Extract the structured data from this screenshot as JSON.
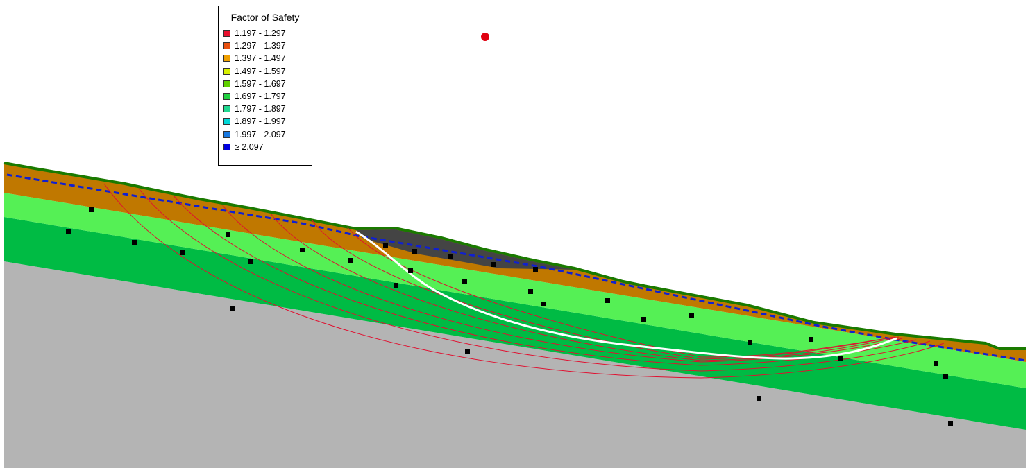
{
  "legend": {
    "title": "Factor of Safety",
    "items": [
      {
        "label": "1.197 - 1.297",
        "color": "#e8102e"
      },
      {
        "label": "1.297 - 1.397",
        "color": "#e85010"
      },
      {
        "label": "1.397 - 1.497",
        "color": "#f0a000"
      },
      {
        "label": "1.497 - 1.597",
        "color": "#d8f000"
      },
      {
        "label": "1.597 - 1.697",
        "color": "#60d000"
      },
      {
        "label": "1.697 - 1.797",
        "color": "#20d040"
      },
      {
        "label": "1.797 - 1.897",
        "color": "#20d890"
      },
      {
        "label": "1.897 - 1.997",
        "color": "#00d8d8"
      },
      {
        "label": "1.997 - 2.097",
        "color": "#1878e0"
      },
      {
        "label": "≥ 2.097",
        "color": "#0000e0"
      }
    ]
  }
}
